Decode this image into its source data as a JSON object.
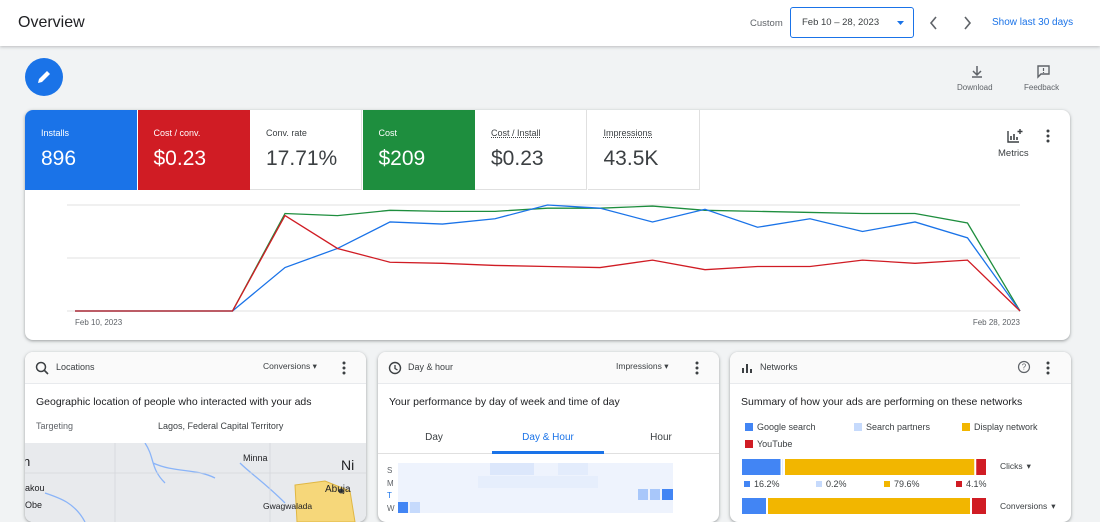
{
  "header": {
    "title": "Overview",
    "range_label": "Custom",
    "date_range": "Feb 10 – 28, 2023",
    "shortcut": "Show last 30 days"
  },
  "toolbar": {
    "download": "Download",
    "feedback": "Feedback"
  },
  "metrics": {
    "menu": "Metrics",
    "tiles": [
      {
        "label": "Installs",
        "value": "896",
        "color": "#1a73e8"
      },
      {
        "label": "Cost / conv.",
        "value": "$0.23",
        "color": "#d01c24"
      },
      {
        "label": "Conv. rate",
        "value": "17.71%",
        "color": "#ffffff"
      },
      {
        "label": "Cost",
        "value": "$209",
        "color": "#1e8e3e"
      },
      {
        "label": "Cost / Install",
        "value": "$0.23",
        "color": "#ffffff"
      },
      {
        "label": "Impressions",
        "value": "43.5K",
        "color": "#ffffff"
      }
    ]
  },
  "chart_data": {
    "type": "line",
    "x_labels": [
      "Feb 10, 2023",
      "Feb 28, 2023"
    ],
    "ylim": [
      0,
      100
    ],
    "gridlines": [
      0,
      50,
      100
    ],
    "series": [
      {
        "color": "#1e8e3e",
        "values": [
          0,
          0,
          0,
          0,
          92,
          90,
          95,
          94,
          94,
          97,
          97,
          99,
          95,
          94,
          93,
          92,
          92,
          83,
          0
        ]
      },
      {
        "color": "#1a73e8",
        "values": [
          0,
          0,
          0,
          0,
          41,
          59,
          84,
          82,
          87,
          100,
          97,
          84,
          96,
          79,
          87,
          75,
          84,
          69,
          0
        ]
      },
      {
        "color": "#d01c24",
        "values": [
          0,
          0,
          0,
          0,
          90,
          59,
          46,
          45,
          43,
          42,
          41,
          48,
          39,
          42,
          42,
          48,
          45,
          48,
          0
        ]
      }
    ]
  },
  "locations": {
    "title": "Locations",
    "metric": "Conversions",
    "description": "Geographic location of people who interacted with your ads",
    "targeting_label": "Targeting",
    "targeting_value": "Lagos, Federal Capital Territory",
    "places": [
      "n",
      "akou",
      "Obe",
      "Minna",
      "Ni",
      "Abuja",
      "Gwagwalada"
    ]
  },
  "day_hour": {
    "title": "Day & hour",
    "metric": "Impressions",
    "description": "Your performance by day of week and time of day",
    "tabs": [
      "Day",
      "Day & Hour",
      "Hour"
    ],
    "days": [
      "S",
      "M",
      "T",
      "W"
    ]
  },
  "networks": {
    "title": "Networks",
    "description": "Summary of how your ads are performing on these networks",
    "legend": [
      {
        "name": "Google search",
        "color": "#4285f4"
      },
      {
        "name": "Search partners",
        "color": "#c6dafc"
      },
      {
        "name": "Display network",
        "color": "#f2b600"
      },
      {
        "name": "YouTube",
        "color": "#d01c24"
      }
    ],
    "bars": [
      {
        "metric": "Clicks",
        "values": [
          16.2,
          0.2,
          79.6,
          4.1
        ],
        "value_labels": [
          "16.2%",
          "0.2%",
          "79.6%",
          "4.1%"
        ]
      },
      {
        "metric": "Conversions"
      }
    ]
  }
}
